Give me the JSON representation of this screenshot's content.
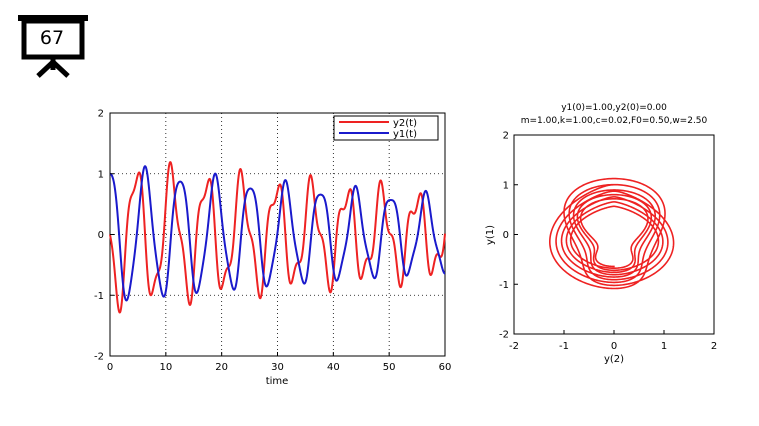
{
  "slide": {
    "number": "67"
  },
  "chart_data": [
    {
      "type": "line",
      "title": "",
      "xlabel": "time",
      "ylabel": "",
      "xlim": [
        0,
        60
      ],
      "ylim": [
        -2,
        2
      ],
      "xticks": [
        "0",
        "10",
        "20",
        "30",
        "40",
        "50",
        "60"
      ],
      "yticks": [
        "2",
        "1",
        "0",
        "-1",
        "-2"
      ],
      "grid": "dotted",
      "legend_position": "top-right",
      "params": {
        "m": 1.0,
        "k": 1.0,
        "c": 0.02,
        "F0": 0.5,
        "w": 2.5,
        "y1_0": 1.0,
        "y2_0": 0.0
      },
      "series": [
        {
          "name": "y2(t)",
          "color": "#ee2222",
          "key": "y2"
        },
        {
          "name": "y1(t)",
          "color": "#1a1acc",
          "key": "y1"
        }
      ]
    },
    {
      "type": "line",
      "title": "y1(0)=1.00,y2(0)=0.00",
      "subtitle": "m=1.00,k=1.00,c=0.02,F0=0.50,w=2.50",
      "xlabel": "y(2)",
      "ylabel": "y(1)",
      "xlim": [
        -2,
        2
      ],
      "ylim": [
        -2,
        2
      ],
      "xticks": [
        "-2",
        "-1",
        "0",
        "1",
        "2"
      ],
      "yticks": [
        "2",
        "1",
        "0",
        "-1",
        "-2"
      ],
      "series": [
        {
          "name": "",
          "color": "#ee2222",
          "x": "y2",
          "y": "y1"
        }
      ]
    }
  ]
}
